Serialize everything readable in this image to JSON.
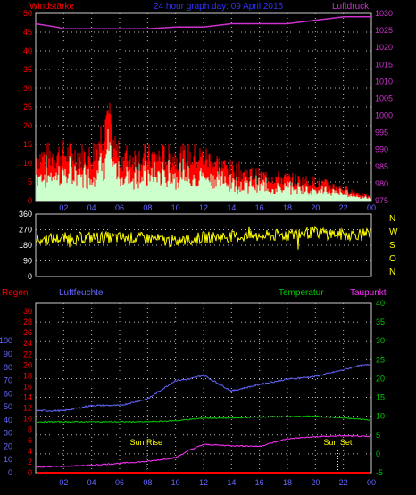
{
  "title": "24 hour graph day: 09 April 2015",
  "colors": {
    "wind_gust": "#ff0000",
    "wind_avg": "#ccffcc",
    "pressure": "#cc33cc",
    "direction": "#ffff00",
    "humidity": "#6666ff",
    "temperature": "#00cc00",
    "dewpoint": "#ff33ff",
    "rain": "#ff0000",
    "grid": "#bbbbbb",
    "axis_left": "#ff0000",
    "axis_right": "#cc33cc",
    "axis_blue": "#6666ff",
    "axis_green": "#00cc00",
    "time": "#6666ff"
  },
  "chart_data": [
    {
      "type": "bar",
      "labels": {
        "left": "Windstärke",
        "right": "Luftdruck"
      },
      "ylim_left": [
        0,
        50
      ],
      "yticks_left": [
        "0",
        "5",
        "10",
        "15",
        "20",
        "25",
        "30",
        "35",
        "40",
        "45",
        "50"
      ],
      "ylim_right": [
        975,
        1030
      ],
      "yticks_right": [
        "975",
        "980",
        "985",
        "990",
        "995",
        "1000",
        "1005",
        "1010",
        "1015",
        "1020",
        "1025",
        "1030"
      ],
      "x_ticks": [
        "02",
        "04",
        "06",
        "08",
        "10",
        "12",
        "14",
        "16",
        "18",
        "20",
        "22",
        "00"
      ],
      "grid": true,
      "series": [
        {
          "name": "Windstärke",
          "x": [
            0,
            2,
            4,
            5,
            6,
            8,
            10,
            12,
            14,
            16,
            18,
            20,
            22,
            24
          ],
          "values": [
            14,
            15,
            14,
            25,
            14,
            14,
            14,
            14,
            10,
            8,
            7,
            6,
            4,
            1
          ]
        },
        {
          "name": "Luftdruck",
          "x": [
            0,
            1.5,
            2,
            4,
            6,
            8,
            10,
            12,
            14,
            16,
            18,
            20,
            21,
            22,
            24
          ],
          "values": [
            1027,
            1026,
            1025.5,
            1025.5,
            1025.5,
            1025.5,
            1026,
            1026,
            1027,
            1027,
            1027,
            1028,
            1028.5,
            1029,
            1029
          ]
        }
      ]
    },
    {
      "type": "line",
      "labels": {
        "right": "N W S O N"
      },
      "ylim": [
        0,
        360
      ],
      "yticks": [
        "0",
        "90",
        "180",
        "270",
        "360"
      ],
      "compass": [
        "N",
        "W",
        "S",
        "O",
        "N"
      ],
      "series": [
        {
          "name": "direction",
          "x": [
            0,
            4,
            8,
            10,
            12,
            14,
            16,
            18,
            20,
            22,
            24
          ],
          "values": [
            215,
            225,
            220,
            200,
            225,
            230,
            230,
            240,
            255,
            240,
            250
          ]
        }
      ]
    },
    {
      "type": "line",
      "labels": {
        "rain": "Regen",
        "humidity": "Luftfeuchte",
        "temperature": "Temperatur",
        "dewpoint": "Taupunkt"
      },
      "yticks_rain": [
        "0",
        "2",
        "4",
        "6",
        "8",
        "10",
        "12",
        "14",
        "16",
        "18",
        "20",
        "22",
        "24",
        "26",
        "28",
        "30"
      ],
      "yticks_humidity": [
        "0",
        "10",
        "20",
        "30",
        "40",
        "50",
        "60",
        "70",
        "80",
        "90",
        "100"
      ],
      "yticks_temp": [
        "-5",
        "0",
        "5",
        "10",
        "15",
        "20",
        "25",
        "30",
        "35",
        "40"
      ],
      "ylim_temp": [
        -5,
        40
      ],
      "x_ticks": [
        "02",
        "04",
        "06",
        "08",
        "10",
        "12",
        "14",
        "16",
        "18",
        "20",
        "22",
        "00"
      ],
      "annotations": [
        {
          "text": "Sun Rise",
          "x": 7.9
        },
        {
          "text": "Sun Set",
          "x": 21.6
        }
      ],
      "series": [
        {
          "name": "Luftfeuchte",
          "x": [
            0,
            2,
            3,
            4,
            6,
            8,
            10,
            11,
            12,
            12.5,
            13,
            14,
            16,
            17,
            18,
            20,
            22,
            23,
            24
          ],
          "values": [
            47,
            47,
            49,
            51,
            51,
            56,
            70,
            71,
            74,
            71,
            68,
            62,
            67,
            69,
            71,
            73,
            78,
            81,
            82
          ]
        },
        {
          "name": "Temperatur",
          "x": [
            0,
            4,
            8,
            10,
            12,
            14,
            16,
            20,
            22,
            24
          ],
          "values": [
            8.5,
            8.5,
            8.5,
            8.8,
            9.5,
            9.5,
            9.8,
            10,
            9.5,
            9
          ]
        },
        {
          "name": "Taupunkt",
          "x": [
            0,
            2,
            4,
            6,
            8,
            10,
            11,
            12,
            14,
            16,
            18,
            20,
            22,
            24
          ],
          "values": [
            -3.5,
            -3.3,
            -3,
            -2.5,
            -2,
            -1,
            1,
            2.5,
            2.2,
            2,
            4,
            4.5,
            4.8,
            4.5
          ]
        },
        {
          "name": "Regen",
          "x": [
            0,
            24
          ],
          "values": [
            0,
            0
          ]
        }
      ]
    }
  ]
}
